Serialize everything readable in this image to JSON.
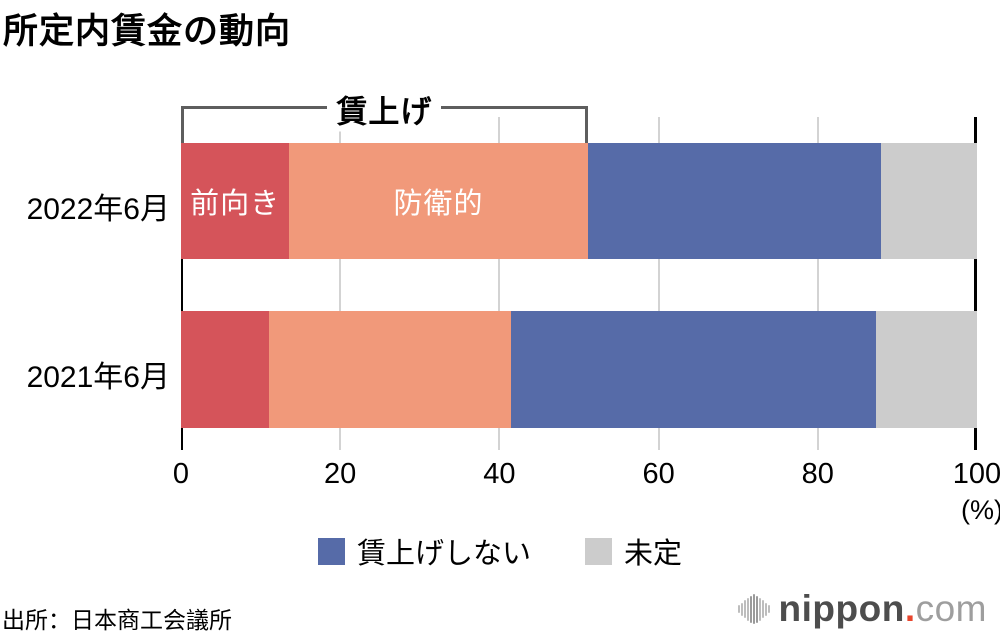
{
  "page": {
    "title": "所定内賃金の動向",
    "source": "出所：日本商工会議所"
  },
  "logo": {
    "icon": "soundwave-bars-icon",
    "text_main": "nippon",
    "text_dot": ".",
    "text_suffix": "com",
    "dot_color": "#e8452c"
  },
  "chart_data": {
    "type": "bar",
    "orientation": "horizontal-stacked",
    "title": "所定内賃金の動向",
    "categories": [
      "2022年6月",
      "2021年6月"
    ],
    "series": [
      {
        "name": "前向き",
        "color": "#d5545a",
        "values": [
          13.6,
          11.1
        ],
        "label_in_bar_row": 0
      },
      {
        "name": "防衛的",
        "color": "#f1997a",
        "values": [
          37.5,
          30.4
        ],
        "label_in_bar_row": 0
      },
      {
        "name": "賃上げしない",
        "color": "#566ba8",
        "values": [
          36.8,
          45.8
        ],
        "label_in_bar_row": null
      },
      {
        "name": "未定",
        "color": "#cccccc",
        "values": [
          12.1,
          12.7
        ],
        "label_in_bar_row": null
      }
    ],
    "bracket": {
      "label": "賃上げ",
      "start_percent": 0,
      "end_percent": 51.1,
      "applies_to_row": "2022年6月"
    },
    "xlim": [
      0,
      100
    ],
    "x_ticks": [
      "0",
      "20",
      "40",
      "60",
      "80",
      "100"
    ],
    "x_gridline_ticks": [
      20,
      40,
      60,
      80
    ],
    "x_unit": "(%)",
    "grid": true,
    "legend_position": "bottom-center",
    "legend": [
      {
        "label": "賃上げしない",
        "color": "#566ba8"
      },
      {
        "label": "未定",
        "color": "#cccccc"
      }
    ]
  }
}
